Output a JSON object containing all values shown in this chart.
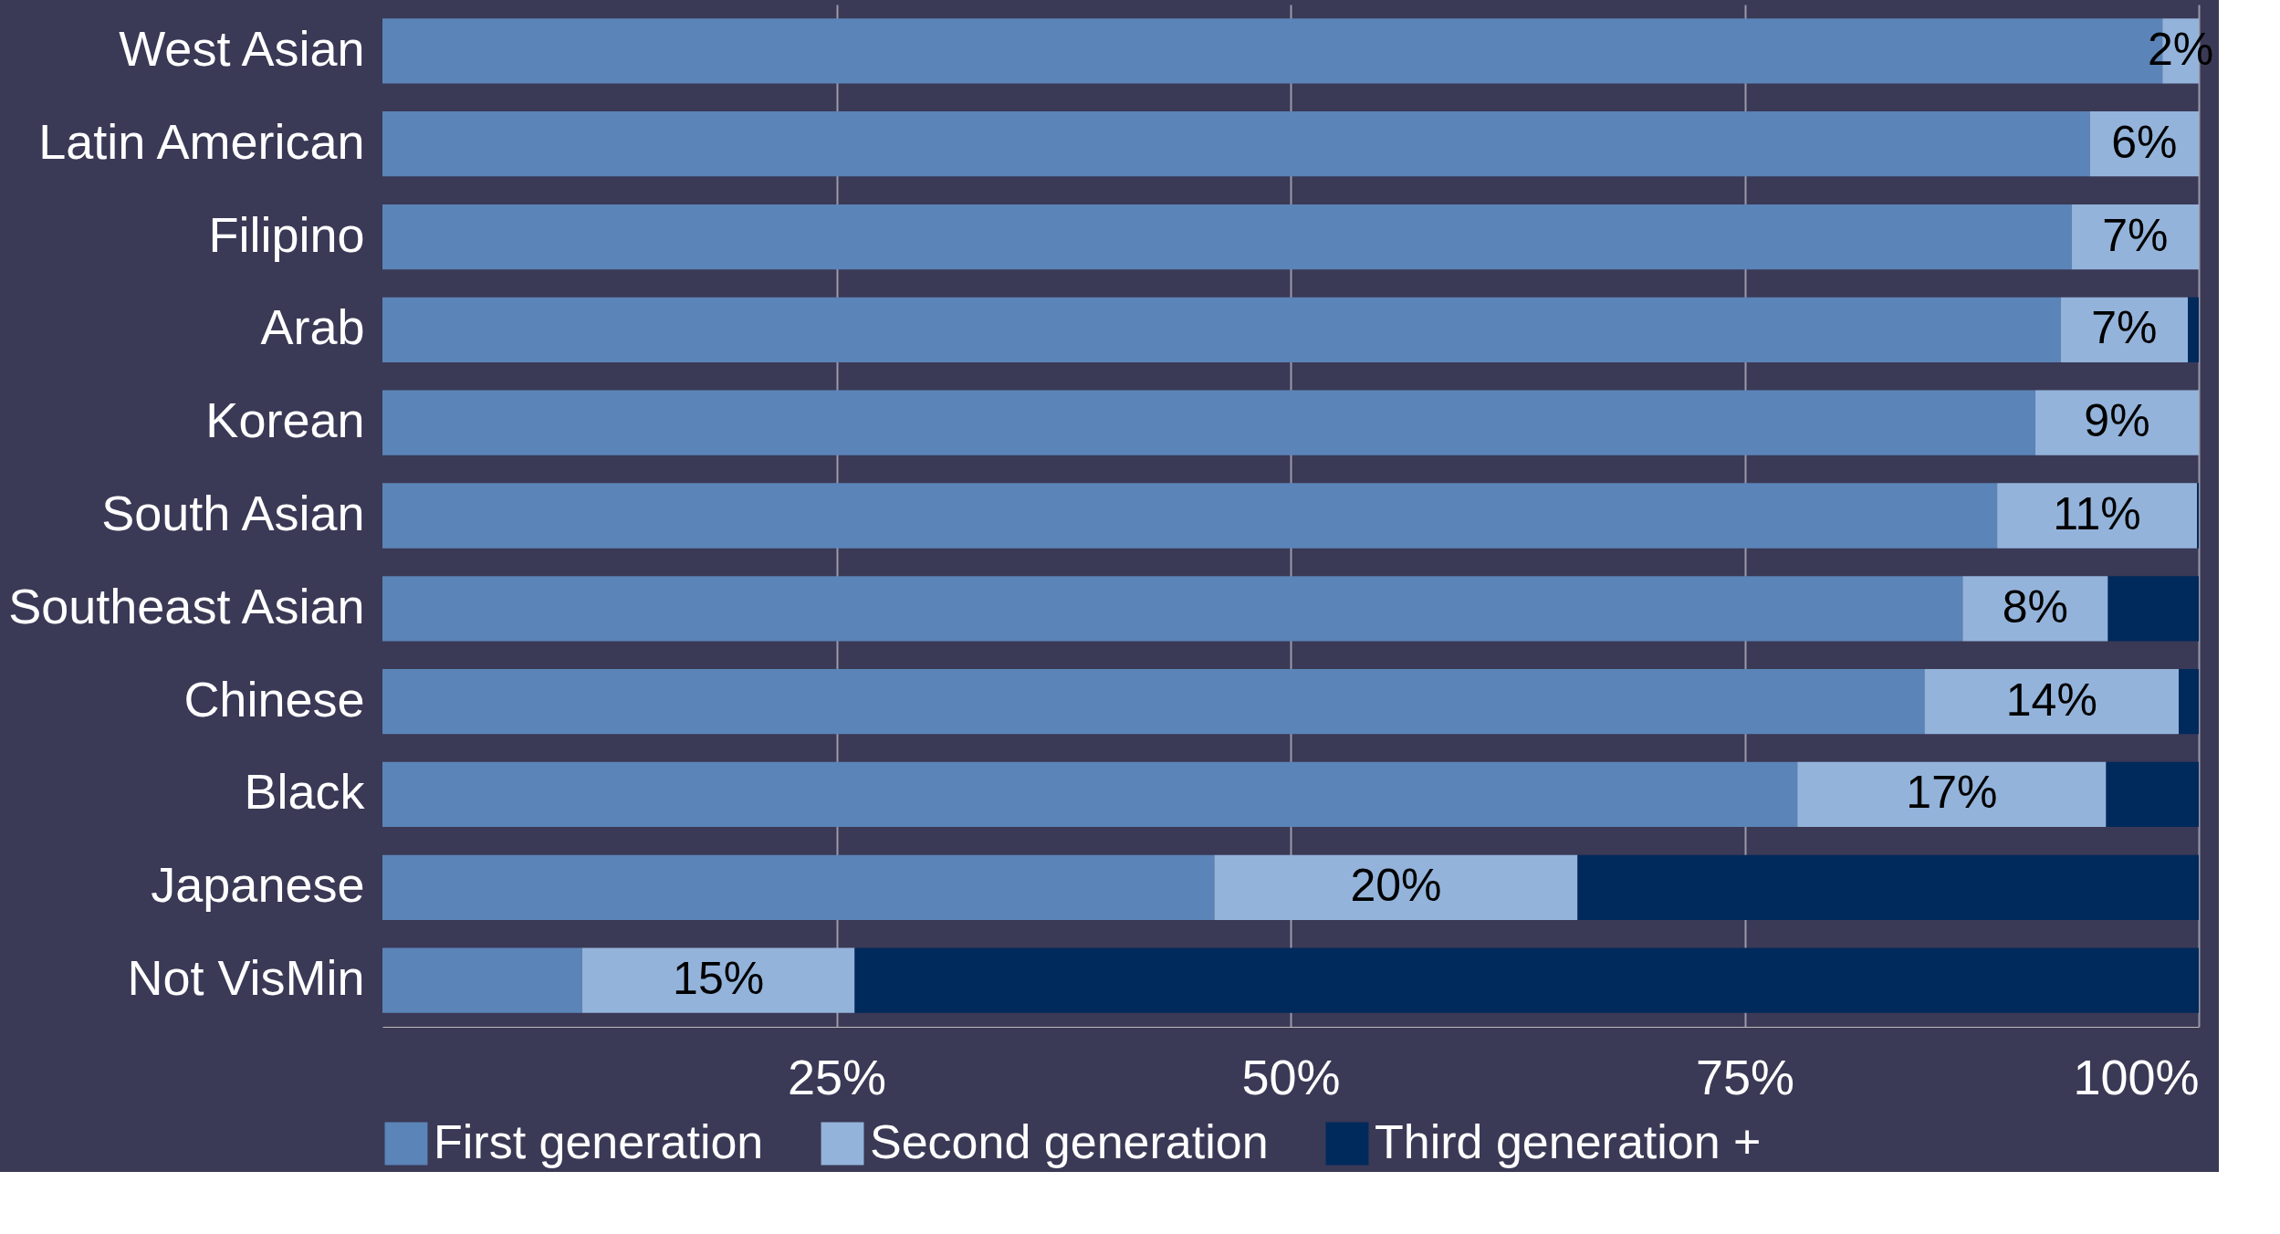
{
  "chart_data": {
    "type": "bar",
    "orientation": "horizontal",
    "stacked": true,
    "categories": [
      "West Asian",
      "Latin American",
      "Filipino",
      "Arab",
      "Korean",
      "South Asian",
      "Southeast Asian",
      "Chinese",
      "Black",
      "Japanese",
      "Not VisMin"
    ],
    "series": [
      {
        "name": "First generation",
        "color": "#5b84b8",
        "values": [
          98,
          94,
          93,
          92.4,
          91,
          88.9,
          87,
          84.9,
          77.9,
          45.8,
          11
        ]
      },
      {
        "name": "Second generation",
        "color": "#93b3da",
        "values": [
          2,
          6,
          7,
          7,
          9,
          11,
          8,
          14,
          17,
          20,
          15
        ],
        "value_labels": [
          "2%",
          "6%",
          "7%",
          "7%",
          "9%",
          "11%",
          "8%",
          "14%",
          "17%",
          "20%",
          "15%"
        ]
      },
      {
        "name": "Third generation +",
        "color": "#002a5c",
        "values": [
          0,
          0,
          0,
          0.6,
          0,
          0.1,
          5,
          1.1,
          5.1,
          34.2,
          74
        ]
      }
    ],
    "xlim": [
      0,
      100
    ],
    "xticks": [
      {
        "value": 25,
        "label": "25%"
      },
      {
        "value": 50,
        "label": "50%"
      },
      {
        "value": 75,
        "label": "75%"
      },
      {
        "value": 100,
        "label": "100%"
      }
    ],
    "grid": "x",
    "legend": "bottom"
  }
}
